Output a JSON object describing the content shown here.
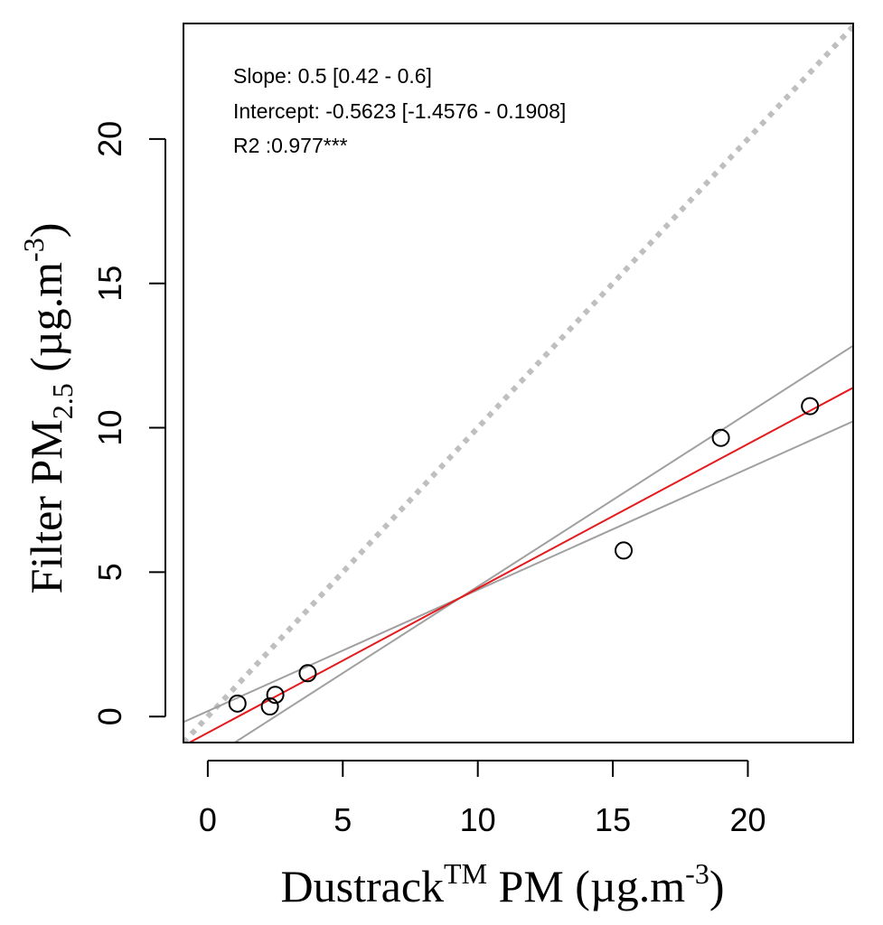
{
  "chart_data": {
    "type": "scatter",
    "xlabel": {
      "main": "Dustrack",
      "superscript": "TM",
      "rest": " PM",
      "unit_prefix": " (µg.m",
      "unit_sup": "-3",
      "unit_suffix": ")"
    },
    "ylabel": {
      "main": "Filter PM",
      "subscript": "2.5",
      "unit_prefix": " (µg.m",
      "unit_sup": "-3",
      "unit_suffix": ")"
    },
    "xlim": [
      -0.9,
      23.9
    ],
    "ylim": [
      -0.9,
      24.0
    ],
    "x_ticks": [
      0,
      5,
      10,
      15,
      20
    ],
    "y_ticks": [
      0,
      5,
      10,
      15,
      20
    ],
    "x_tick_labels": [
      "0",
      "5",
      "10",
      "15",
      "20"
    ],
    "y_tick_labels": [
      "0",
      "5",
      "10",
      "15",
      "20"
    ],
    "grid": false,
    "points": [
      {
        "x": 1.1,
        "y": 0.45
      },
      {
        "x": 2.3,
        "y": 0.35
      },
      {
        "x": 2.5,
        "y": 0.75
      },
      {
        "x": 3.7,
        "y": 1.5
      },
      {
        "x": 15.4,
        "y": 5.75
      },
      {
        "x": 19.0,
        "y": 9.65
      },
      {
        "x": 22.3,
        "y": 10.75
      }
    ],
    "regression": {
      "slope": 0.5,
      "intercept": -0.5623,
      "color": "#e41a1c"
    },
    "confidence_band": {
      "color": "#a0a0a0",
      "pivot_x": 9.35,
      "slopes": [
        0.42,
        0.6
      ]
    },
    "identity_line": {
      "color": "#bfbfbf",
      "style": "dotted"
    },
    "annotations": [
      "Slope: 0.5 [0.42 - 0.6]",
      "Intercept: -0.5623 [-1.4576 - 0.1908]",
      "R2 :0.977***"
    ]
  }
}
